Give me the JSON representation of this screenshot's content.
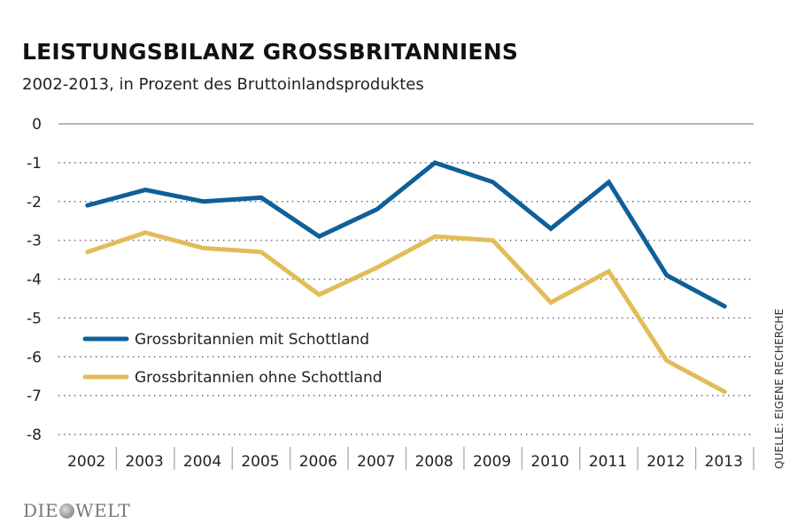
{
  "header": {
    "title": "LEISTUNGSBILANZ GROSSBRITANNIENS",
    "subtitle": "2002-2013, in Prozent des Bruttoinlandsproduktes"
  },
  "source": "QUELLE: EIGENE RECHERCHE",
  "logo": {
    "left": "DIE",
    "right": "WELT",
    "icon": "globe-icon"
  },
  "chart_data": {
    "type": "line",
    "title": "LEISTUNGSBILANZ GROSSBRITANNIENS",
    "subtitle": "2002-2013, in Prozent des Bruttoinlandsproduktes",
    "xlabel": "",
    "ylabel": "",
    "x": [
      "2002",
      "2003",
      "2004",
      "2005",
      "2006",
      "2007",
      "2008",
      "2009",
      "2010",
      "2011",
      "2012",
      "2013"
    ],
    "ylim": [
      -8,
      0
    ],
    "yticks": [
      0,
      -1,
      -2,
      -3,
      -4,
      -5,
      -6,
      -7,
      -8
    ],
    "grid": true,
    "legend_position": "bottom-left",
    "series": [
      {
        "name": "Grossbritannien mit Schottland",
        "color": "#0f5f99",
        "values": [
          -2.1,
          -1.7,
          -2.0,
          -1.9,
          -2.9,
          -2.2,
          -1.0,
          -1.5,
          -2.7,
          -1.5,
          -3.9,
          -4.7
        ]
      },
      {
        "name": "Grossbritannien ohne Schottland",
        "color": "#e3bc58",
        "values": [
          -3.3,
          -2.8,
          -3.2,
          -3.3,
          -4.4,
          -3.7,
          -2.9,
          -3.0,
          -4.6,
          -3.8,
          -6.1,
          -6.9
        ]
      }
    ]
  }
}
